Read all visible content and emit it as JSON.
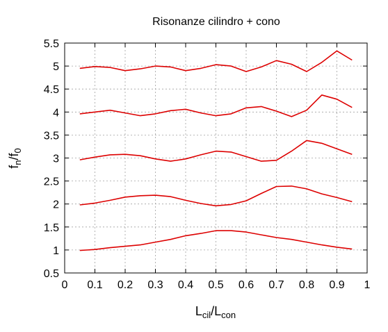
{
  "chart_data": {
    "type": "line",
    "title": "Risonanze cilindro + cono",
    "xlabel": {
      "main": "L",
      "sub1": "cil",
      "sep": "/L",
      "sub2": "con"
    },
    "ylabel": {
      "main": "f",
      "sub1": "n",
      "sep": "/f",
      "sub2": "0"
    },
    "xlim": [
      0,
      1
    ],
    "ylim": [
      0.5,
      5.5
    ],
    "xticks": [
      "0",
      "0.1",
      "0.2",
      "0.3",
      "0.4",
      "0.5",
      "0.6",
      "0.7",
      "0.8",
      "0.9",
      "1"
    ],
    "yticks": [
      "0.5",
      "1",
      "1.5",
      "2",
      "2.5",
      "3",
      "3.5",
      "4",
      "4.5",
      "5",
      "5.5"
    ],
    "grid": true,
    "color": "#dd0000",
    "x": [
      0.05,
      0.1,
      0.15,
      0.2,
      0.25,
      0.3,
      0.35,
      0.4,
      0.45,
      0.5,
      0.55,
      0.6,
      0.65,
      0.7,
      0.75,
      0.8,
      0.85,
      0.9,
      0.95
    ],
    "series": [
      {
        "values": [
          0.99,
          1.01,
          1.05,
          1.08,
          1.11,
          1.17,
          1.23,
          1.31,
          1.36,
          1.42,
          1.42,
          1.39,
          1.33,
          1.27,
          1.23,
          1.17,
          1.11,
          1.06,
          1.02
        ]
      },
      {
        "values": [
          1.98,
          2.02,
          2.08,
          2.15,
          2.18,
          2.19,
          2.16,
          2.08,
          2.01,
          1.96,
          1.99,
          2.07,
          2.23,
          2.38,
          2.39,
          2.33,
          2.22,
          2.14,
          2.05
        ]
      },
      {
        "values": [
          2.96,
          3.02,
          3.07,
          3.08,
          3.05,
          2.98,
          2.93,
          2.98,
          3.07,
          3.15,
          3.13,
          3.03,
          2.93,
          2.95,
          3.15,
          3.38,
          3.32,
          3.2,
          3.08
        ]
      },
      {
        "values": [
          3.96,
          4.0,
          4.04,
          3.98,
          3.92,
          3.96,
          4.03,
          4.06,
          3.98,
          3.92,
          3.96,
          4.09,
          4.12,
          4.02,
          3.9,
          4.04,
          4.37,
          4.28,
          4.1
        ]
      },
      {
        "values": [
          4.95,
          4.99,
          4.97,
          4.9,
          4.94,
          5.0,
          4.98,
          4.9,
          4.95,
          5.03,
          5.0,
          4.88,
          4.98,
          5.12,
          5.04,
          4.88,
          5.08,
          5.33,
          5.13
        ]
      }
    ]
  }
}
